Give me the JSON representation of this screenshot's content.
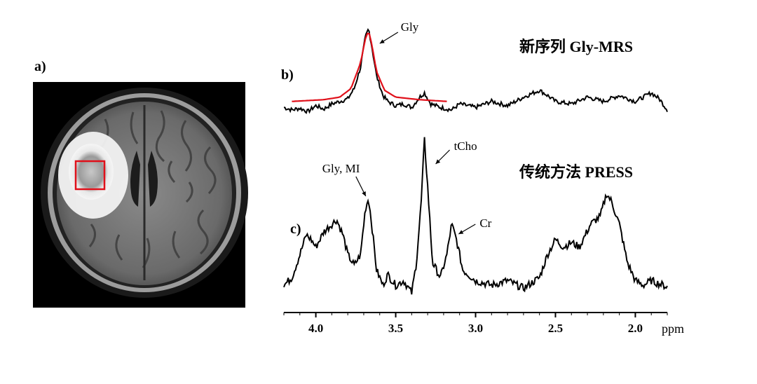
{
  "panels": {
    "a_label": "a)",
    "b_label": "b)",
    "c_label": "c)"
  },
  "mri": {
    "description_colors": {
      "roi_box": "#e0101a",
      "background": "#000000"
    }
  },
  "chart_data": [
    {
      "type": "line",
      "panel": "b",
      "title": "新序列 Gly-MRS",
      "xlabel": "ppm",
      "xlim": [
        4.2,
        1.8
      ],
      "x_reversed": true,
      "series": [
        {
          "color": "#000000",
          "points": [
            [
              4.2,
              0.08
            ],
            [
              4.15,
              0.05
            ],
            [
              4.1,
              0.07
            ],
            [
              4.05,
              0.03
            ],
            [
              4.0,
              0.1
            ],
            [
              3.95,
              0.06
            ],
            [
              3.9,
              0.12
            ],
            [
              3.85,
              0.15
            ],
            [
              3.8,
              0.18
            ],
            [
              3.76,
              0.3
            ],
            [
              3.72,
              0.55
            ],
            [
              3.69,
              0.9
            ],
            [
              3.67,
              1.0
            ],
            [
              3.65,
              0.8
            ],
            [
              3.62,
              0.45
            ],
            [
              3.58,
              0.22
            ],
            [
              3.55,
              0.15
            ],
            [
              3.5,
              0.1
            ],
            [
              3.45,
              0.12
            ],
            [
              3.4,
              0.08
            ],
            [
              3.35,
              0.2
            ],
            [
              3.32,
              0.25
            ],
            [
              3.28,
              0.12
            ],
            [
              3.22,
              0.08
            ],
            [
              3.15,
              0.05
            ],
            [
              3.1,
              0.12
            ],
            [
              3.0,
              0.08
            ],
            [
              2.9,
              0.15
            ],
            [
              2.8,
              0.1
            ],
            [
              2.7,
              0.2
            ],
            [
              2.6,
              0.28
            ],
            [
              2.55,
              0.22
            ],
            [
              2.5,
              0.15
            ],
            [
              2.4,
              0.12
            ],
            [
              2.3,
              0.2
            ],
            [
              2.2,
              0.15
            ],
            [
              2.1,
              0.22
            ],
            [
              2.0,
              0.15
            ],
            [
              1.9,
              0.25
            ],
            [
              1.85,
              0.18
            ],
            [
              1.8,
              0.05
            ]
          ]
        },
        {
          "color": "#e0101a",
          "points": [
            [
              4.15,
              0.15
            ],
            [
              3.95,
              0.17
            ],
            [
              3.85,
              0.2
            ],
            [
              3.78,
              0.3
            ],
            [
              3.72,
              0.6
            ],
            [
              3.69,
              0.88
            ],
            [
              3.67,
              0.98
            ],
            [
              3.65,
              0.82
            ],
            [
              3.62,
              0.5
            ],
            [
              3.57,
              0.28
            ],
            [
              3.5,
              0.2
            ],
            [
              3.35,
              0.17
            ],
            [
              3.18,
              0.15
            ]
          ]
        }
      ],
      "annotations": [
        {
          "text": "Gly",
          "x": 3.67
        }
      ]
    },
    {
      "type": "line",
      "panel": "c",
      "title": "传统方法 PRESS",
      "xlabel": "ppm",
      "xlim": [
        4.2,
        1.8
      ],
      "x_reversed": true,
      "xticks": [
        4.0,
        3.5,
        3.0,
        2.5,
        2.0
      ],
      "xtick_labels": [
        "4.0",
        "3.5",
        "3.0",
        "2.5",
        "2.0"
      ],
      "series": [
        {
          "color": "#000000",
          "points": [
            [
              4.2,
              0.05
            ],
            [
              4.15,
              0.1
            ],
            [
              4.1,
              0.25
            ],
            [
              4.06,
              0.38
            ],
            [
              4.03,
              0.35
            ],
            [
              4.0,
              0.3
            ],
            [
              3.95,
              0.4
            ],
            [
              3.9,
              0.45
            ],
            [
              3.87,
              0.48
            ],
            [
              3.83,
              0.38
            ],
            [
              3.8,
              0.25
            ],
            [
              3.76,
              0.18
            ],
            [
              3.72,
              0.25
            ],
            [
              3.69,
              0.55
            ],
            [
              3.67,
              0.62
            ],
            [
              3.65,
              0.45
            ],
            [
              3.62,
              0.15
            ],
            [
              3.58,
              0.05
            ],
            [
              3.55,
              0.12
            ],
            [
              3.5,
              0.05
            ],
            [
              3.45,
              0.08
            ],
            [
              3.4,
              0.0
            ],
            [
              3.37,
              0.2
            ],
            [
              3.34,
              0.6
            ],
            [
              3.32,
              1.0
            ],
            [
              3.3,
              0.7
            ],
            [
              3.27,
              0.2
            ],
            [
              3.22,
              0.1
            ],
            [
              3.18,
              0.25
            ],
            [
              3.15,
              0.45
            ],
            [
              3.12,
              0.35
            ],
            [
              3.08,
              0.15
            ],
            [
              3.0,
              0.08
            ],
            [
              2.9,
              0.05
            ],
            [
              2.8,
              0.08
            ],
            [
              2.7,
              0.03
            ],
            [
              2.6,
              0.1
            ],
            [
              2.55,
              0.25
            ],
            [
              2.5,
              0.35
            ],
            [
              2.45,
              0.3
            ],
            [
              2.4,
              0.33
            ],
            [
              2.35,
              0.3
            ],
            [
              2.28,
              0.45
            ],
            [
              2.22,
              0.5
            ],
            [
              2.18,
              0.65
            ],
            [
              2.15,
              0.6
            ],
            [
              2.1,
              0.45
            ],
            [
              2.05,
              0.2
            ],
            [
              2.0,
              0.08
            ],
            [
              1.95,
              0.05
            ],
            [
              1.9,
              0.08
            ],
            [
              1.85,
              0.06
            ],
            [
              1.8,
              0.04
            ]
          ]
        }
      ],
      "annotations": [
        {
          "text": "Gly, MI",
          "x": 3.67
        },
        {
          "text": "tCho",
          "x": 3.32
        },
        {
          "text": "Cr",
          "x": 3.15
        }
      ]
    }
  ]
}
